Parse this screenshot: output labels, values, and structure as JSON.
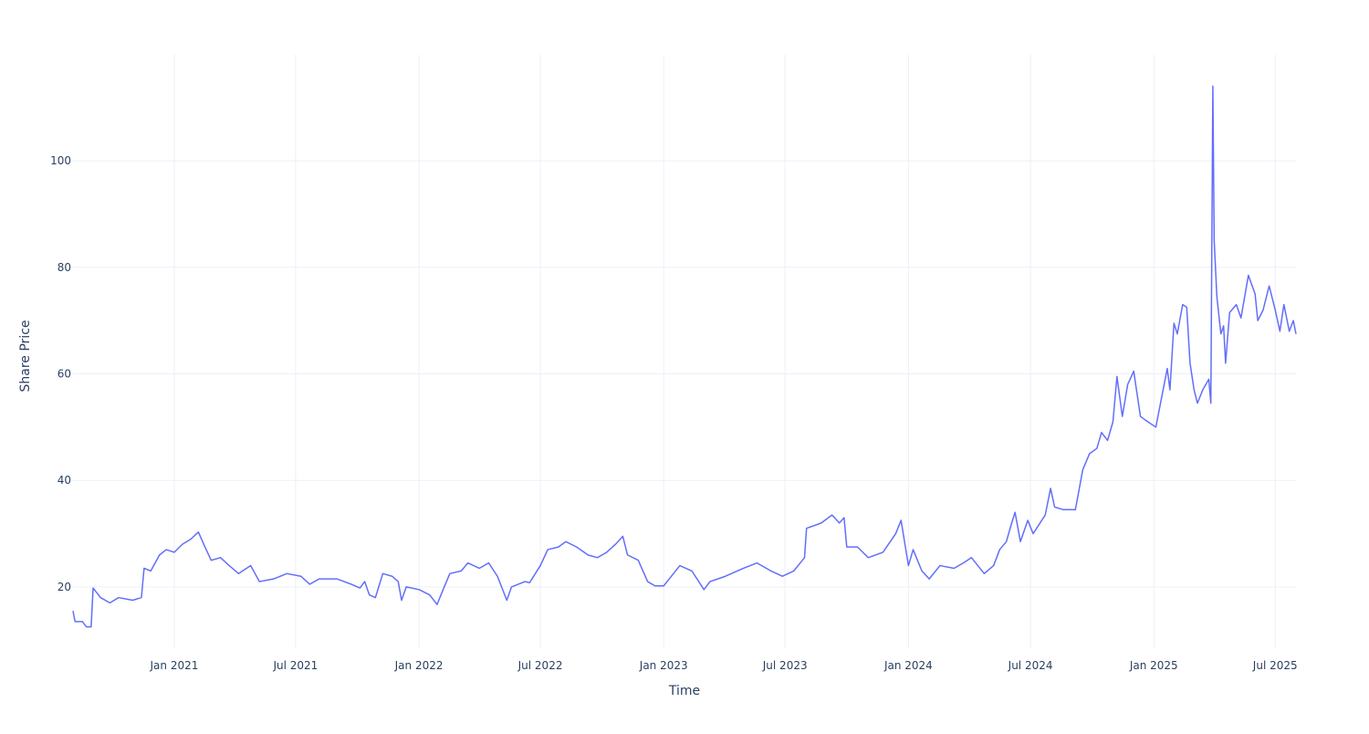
{
  "chart_data": {
    "type": "line",
    "x_label": "Time",
    "y_label": "Share Price",
    "color": "#636efa",
    "grid": true,
    "xlim": [
      "2020-08-03",
      "2025-08-01"
    ],
    "xticks": [
      {
        "value": "2021-01-01",
        "label": "Jan 2021"
      },
      {
        "value": "2021-07-01",
        "label": "Jul 2021"
      },
      {
        "value": "2022-01-01",
        "label": "Jan 2022"
      },
      {
        "value": "2022-07-01",
        "label": "Jul 2022"
      },
      {
        "value": "2023-01-01",
        "label": "Jan 2023"
      },
      {
        "value": "2023-07-01",
        "label": "Jul 2023"
      },
      {
        "value": "2024-01-01",
        "label": "Jan 2024"
      },
      {
        "value": "2024-07-01",
        "label": "Jul 2024"
      },
      {
        "value": "2025-01-01",
        "label": "Jan 2025"
      },
      {
        "value": "2025-07-01",
        "label": "Jul 2025"
      }
    ],
    "ylim": [
      8.5,
      119.9
    ],
    "yticks": [
      20,
      40,
      60,
      80,
      100
    ],
    "x": [
      "2020-08-03",
      "2020-08-06",
      "2020-08-17",
      "2020-08-23",
      "2020-08-30",
      "2020-09-02",
      "2020-09-13",
      "2020-09-27",
      "2020-10-10",
      "2020-10-31",
      "2020-11-13",
      "2020-11-17",
      "2020-11-27",
      "2020-12-10",
      "2020-12-20",
      "2021-01-01",
      "2021-01-13",
      "2021-01-26",
      "2021-02-06",
      "2021-02-14",
      "2021-02-25",
      "2021-03-11",
      "2021-03-24",
      "2021-04-07",
      "2021-04-25",
      "2021-05-08",
      "2021-05-29",
      "2021-06-18",
      "2021-07-09",
      "2021-07-22",
      "2021-08-05",
      "2021-09-01",
      "2021-09-22",
      "2021-10-05",
      "2021-10-12",
      "2021-10-19",
      "2021-10-28",
      "2021-11-08",
      "2021-11-22",
      "2021-12-01",
      "2021-12-06",
      "2021-12-13",
      "2022-01-01",
      "2022-01-17",
      "2022-01-28",
      "2022-02-06",
      "2022-02-16",
      "2022-03-05",
      "2022-03-15",
      "2022-04-01",
      "2022-04-15",
      "2022-04-28",
      "2022-05-12",
      "2022-05-19",
      "2022-06-08",
      "2022-06-15",
      "2022-07-01",
      "2022-07-12",
      "2022-07-28",
      "2022-08-08",
      "2022-08-24",
      "2022-09-10",
      "2022-09-24",
      "2022-10-08",
      "2022-10-21",
      "2022-11-01",
      "2022-11-08",
      "2022-11-24",
      "2022-12-08",
      "2022-12-19",
      "2023-01-01",
      "2023-01-25",
      "2023-02-12",
      "2023-03-02",
      "2023-03-11",
      "2023-04-03",
      "2023-04-30",
      "2023-05-20",
      "2023-06-10",
      "2023-06-27",
      "2023-07-14",
      "2023-07-30",
      "2023-08-02",
      "2023-08-24",
      "2023-09-09",
      "2023-09-20",
      "2023-09-27",
      "2023-10-01",
      "2023-10-17",
      "2023-11-02",
      "2023-11-24",
      "2023-12-13",
      "2023-12-21",
      "2024-01-01",
      "2024-01-08",
      "2024-01-21",
      "2024-02-01",
      "2024-02-17",
      "2024-03-09",
      "2024-03-23",
      "2024-04-04",
      "2024-04-23",
      "2024-05-07",
      "2024-05-16",
      "2024-05-26",
      "2024-06-03",
      "2024-06-08",
      "2024-06-16",
      "2024-06-27",
      "2024-07-05",
      "2024-07-23",
      "2024-07-31",
      "2024-08-06",
      "2024-08-19",
      "2024-09-06",
      "2024-09-17",
      "2024-09-27",
      "2024-10-08",
      "2024-10-15",
      "2024-10-24",
      "2024-11-01",
      "2024-11-07",
      "2024-11-15",
      "2024-11-23",
      "2024-12-02",
      "2024-12-12",
      "2024-12-23",
      "2025-01-04",
      "2025-01-21",
      "2025-01-25",
      "2025-01-31",
      "2025-02-05",
      "2025-02-13",
      "2025-02-19",
      "2025-02-24",
      "2025-03-02",
      "2025-03-07",
      "2025-03-15",
      "2025-03-24",
      "2025-03-27",
      "2025-03-30",
      "2025-04-01",
      "2025-04-05",
      "2025-04-11",
      "2025-04-15",
      "2025-04-18",
      "2025-04-24",
      "2025-05-04",
      "2025-05-11",
      "2025-05-22",
      "2025-06-01",
      "2025-06-05",
      "2025-06-13",
      "2025-06-22",
      "2025-07-01",
      "2025-07-08",
      "2025-07-14",
      "2025-07-22",
      "2025-07-28",
      "2025-08-01"
    ],
    "values": [
      15.5,
      13.5,
      13.5,
      12.5,
      12.5,
      19.8,
      18,
      17,
      18,
      17.5,
      18,
      23.5,
      23,
      26,
      27,
      26.5,
      28,
      29,
      30.3,
      28,
      25,
      25.5,
      24,
      22.5,
      24,
      21,
      21.5,
      22.5,
      22,
      20.5,
      21.5,
      21.5,
      20.5,
      19.8,
      21,
      18.5,
      18,
      22.5,
      22,
      21,
      17.5,
      20,
      19.5,
      18.5,
      16.7,
      19.5,
      22.5,
      23,
      24.5,
      23.5,
      24.5,
      22,
      17.5,
      20,
      21,
      20.8,
      24,
      27,
      27.5,
      28.5,
      27.5,
      26,
      25.5,
      26.5,
      28,
      29.5,
      26,
      25,
      21,
      20.2,
      20.2,
      24,
      23,
      19.5,
      21,
      22,
      23.5,
      24.5,
      23,
      22,
      23,
      25.5,
      31,
      32,
      33.5,
      32,
      33,
      27.5,
      27.5,
      25.5,
      26.5,
      30,
      32.5,
      24,
      27,
      23,
      21.5,
      24,
      23.5,
      24.5,
      25.5,
      22.5,
      24,
      27,
      28.5,
      32,
      34,
      28.5,
      32.5,
      30,
      33.5,
      38.5,
      35,
      34.5,
      34.5,
      42,
      45,
      46,
      49,
      47.5,
      51,
      59.5,
      52,
      58,
      60.5,
      52,
      51,
      50,
      61,
      57,
      69.5,
      67.5,
      73,
      72.5,
      62,
      57,
      54.5,
      57,
      59,
      54.5,
      114,
      85,
      74.5,
      67.5,
      69,
      62,
      71.5,
      73,
      70.5,
      78.5,
      75,
      70,
      72,
      76.5,
      72,
      68,
      73,
      68,
      70,
      67.5
    ]
  }
}
